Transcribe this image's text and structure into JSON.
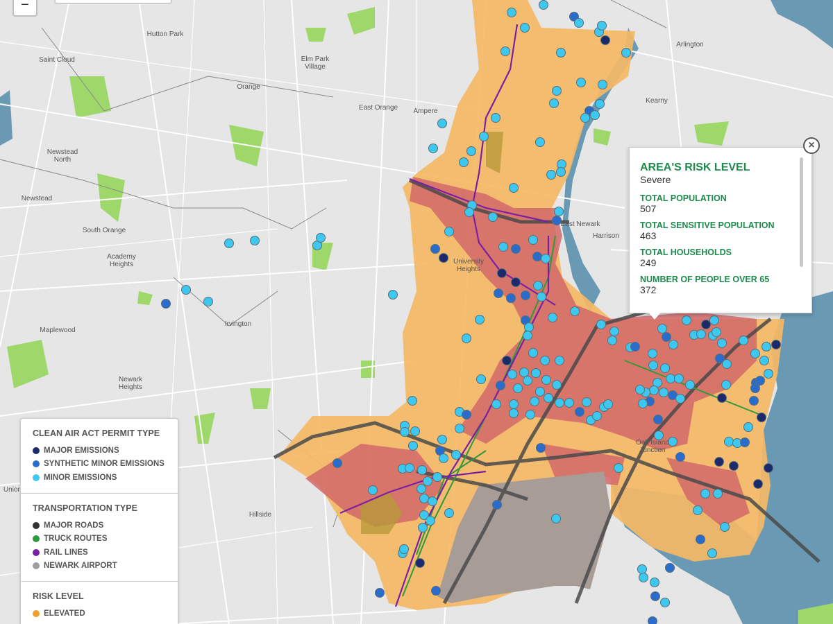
{
  "zoom_control": {
    "zoom_out": "−"
  },
  "places": [
    {
      "lines": [
        "Hutton Park"
      ]
    },
    {
      "lines": [
        "Saint Cloud"
      ]
    },
    {
      "lines": [
        "Elm Park",
        "Village"
      ]
    },
    {
      "lines": [
        "Orange"
      ]
    },
    {
      "lines": [
        "East Orange"
      ]
    },
    {
      "lines": [
        "Ampere"
      ]
    },
    {
      "lines": [
        "Arlington"
      ]
    },
    {
      "lines": [
        "Kearny"
      ]
    },
    {
      "lines": [
        "Newstead",
        "North"
      ]
    },
    {
      "lines": [
        "Newstead"
      ]
    },
    {
      "lines": [
        "South Orange"
      ]
    },
    {
      "lines": [
        "Academy",
        "Heights"
      ]
    },
    {
      "lines": [
        "East Newark"
      ]
    },
    {
      "lines": [
        "Harrison"
      ]
    },
    {
      "lines": [
        "Irvington"
      ]
    },
    {
      "lines": [
        "Maplewood"
      ]
    },
    {
      "lines": [
        "Newark",
        "Heights"
      ]
    },
    {
      "lines": [
        "Hillside"
      ]
    },
    {
      "lines": [
        "University",
        "Heights"
      ]
    },
    {
      "lines": [
        "Oak Island",
        "Junction"
      ]
    },
    {
      "lines": [
        "Union"
      ]
    }
  ],
  "popup": {
    "title": "AREA'S RISK LEVEL",
    "risk": "Severe",
    "close": "×",
    "fields": [
      {
        "label": "TOTAL POPULATION",
        "value": 507
      },
      {
        "label": "TOTAL SENSITIVE POPULATION",
        "value": 463
      },
      {
        "label": "TOTAL HOUSEHOLDS",
        "value": 249
      },
      {
        "label": "NUMBER OF PEOPLE OVER 65",
        "value": 372
      }
    ]
  },
  "legend": {
    "sections": [
      {
        "title": "CLEAN AIR ACT PERMIT TYPE",
        "items": [
          {
            "label": "MAJOR EMISSIONS",
            "color": "#1c2a6b"
          },
          {
            "label": "SYNTHETIC MINOR EMISSIONS",
            "color": "#2a6ccc"
          },
          {
            "label": "MINOR EMISSIONS",
            "color": "#3ec8ef"
          }
        ]
      },
      {
        "title": "TRANSPORTATION TYPE",
        "items": [
          {
            "label": "MAJOR ROADS",
            "color": "#333333"
          },
          {
            "label": "TRUCK ROUTES",
            "color": "#2e9a3a"
          },
          {
            "label": "RAIL LINES",
            "color": "#7b1fa2"
          },
          {
            "label": "NEWARK AIRPORT",
            "color": "#9e9e9e"
          }
        ]
      },
      {
        "title": "RISK LEVEL",
        "items": [
          {
            "label": "ELEVATED",
            "color": "#f0a030"
          }
        ]
      }
    ]
  }
}
